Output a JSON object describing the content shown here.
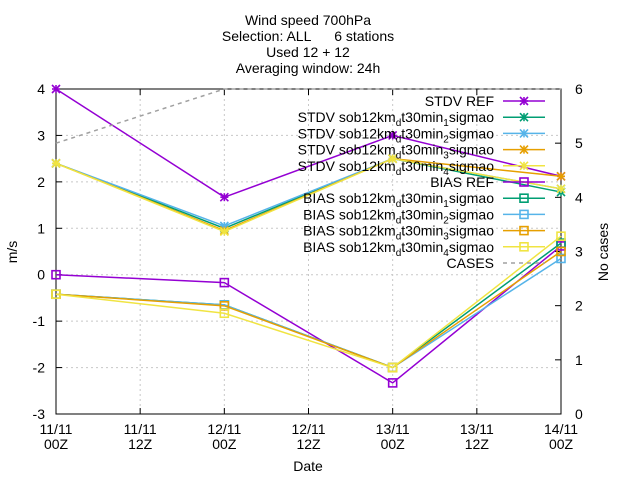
{
  "chart_data": {
    "type": "line",
    "title_lines": [
      "Wind speed 700hPa",
      "Selection: ALL      6 stations",
      "Used 12 + 12",
      "Averaging window: 24h"
    ],
    "xlabel": "Date",
    "ylabel": "m/s",
    "y2label": "No cases",
    "x": [
      0,
      0.5,
      1,
      1.5,
      2,
      2.5,
      3
    ],
    "x_tick_labels": [
      [
        "11/11",
        "00Z"
      ],
      [
        "11/11",
        "12Z"
      ],
      [
        "12/11",
        "00Z"
      ],
      [
        "12/11",
        "12Z"
      ],
      [
        "13/11",
        "00Z"
      ],
      [
        "13/11",
        "12Z"
      ],
      [
        "14/11",
        "00Z"
      ]
    ],
    "ylim": [
      -3,
      4
    ],
    "y_ticks": [
      "-3",
      "-2",
      "-1",
      "0",
      "1",
      "2",
      "3",
      "4"
    ],
    "y2lim": [
      0,
      6
    ],
    "y2_ticks": [
      "0",
      "1",
      "2",
      "3",
      "4",
      "5",
      "6"
    ],
    "grid": true,
    "legend_position": "top-right",
    "series": [
      {
        "name": "STDV REF",
        "kind": "stdv",
        "marker": "x",
        "color": "#9400d3",
        "x": [
          0,
          1,
          2,
          3
        ],
        "values": [
          4.0,
          1.67,
          3.0,
          2.12
        ]
      },
      {
        "name_parts": [
          "STDV sob12km",
          "d",
          "t30min",
          "1",
          "sigmao"
        ],
        "kind": "stdv",
        "marker": "x",
        "color": "#009e73",
        "x": [
          0,
          1,
          2,
          3
        ],
        "values": [
          2.4,
          1.0,
          2.5,
          1.78
        ]
      },
      {
        "name_parts": [
          "STDV sob12km",
          "d",
          "t30min",
          "2",
          "sigmao"
        ],
        "kind": "stdv",
        "marker": "x",
        "color": "#56b4e9",
        "x": [
          0,
          1,
          2,
          3
        ],
        "values": [
          2.4,
          1.05,
          2.5,
          1.85
        ]
      },
      {
        "name_parts": [
          "STDV sob12km",
          "d",
          "t30min",
          "3",
          "sigmao"
        ],
        "kind": "stdv",
        "marker": "x",
        "color": "#e69f00",
        "x": [
          0,
          1,
          2,
          3
        ],
        "values": [
          2.4,
          0.95,
          2.5,
          2.12
        ]
      },
      {
        "name_parts": [
          "STDV sob12km",
          "d",
          "t30min",
          "4",
          "sigmao"
        ],
        "kind": "stdv",
        "marker": "x",
        "color": "#f0e442",
        "x": [
          0,
          1,
          2,
          3
        ],
        "values": [
          2.4,
          0.93,
          2.5,
          1.85
        ]
      },
      {
        "name": "BIAS REF",
        "kind": "bias",
        "marker": "square",
        "color": "#9400d3",
        "x": [
          0,
          1,
          2,
          3
        ],
        "values": [
          0.0,
          -0.17,
          -2.33,
          0.62
        ]
      },
      {
        "name_parts": [
          "BIAS sob12km",
          "d",
          "t30min",
          "1",
          "sigmao"
        ],
        "kind": "bias",
        "marker": "square",
        "color": "#009e73",
        "x": [
          0,
          1,
          2,
          3
        ],
        "values": [
          -0.42,
          -0.65,
          -2.0,
          0.68
        ]
      },
      {
        "name_parts": [
          "BIAS sob12km",
          "d",
          "t30min",
          "2",
          "sigmao"
        ],
        "kind": "bias",
        "marker": "square",
        "color": "#56b4e9",
        "x": [
          0,
          1,
          2,
          3
        ],
        "values": [
          -0.42,
          -0.65,
          -2.0,
          0.35
        ]
      },
      {
        "name_parts": [
          "BIAS sob12km",
          "d",
          "t30min",
          "3",
          "sigmao"
        ],
        "kind": "bias",
        "marker": "square",
        "color": "#e69f00",
        "x": [
          0,
          1,
          2,
          3
        ],
        "values": [
          -0.42,
          -0.67,
          -2.0,
          0.5
        ]
      },
      {
        "name_parts": [
          "BIAS sob12km",
          "d",
          "t30min",
          "4",
          "sigmao"
        ],
        "kind": "bias",
        "marker": "square",
        "color": "#f0e442",
        "x": [
          0,
          1,
          2,
          3
        ],
        "values": [
          -0.42,
          -0.83,
          -2.0,
          0.83
        ]
      },
      {
        "name": "CASES",
        "kind": "cases",
        "axis": "y2",
        "color": "#a0a0a0",
        "x": [
          0,
          1,
          2,
          3
        ],
        "values": [
          5,
          6,
          6,
          6
        ]
      }
    ]
  }
}
